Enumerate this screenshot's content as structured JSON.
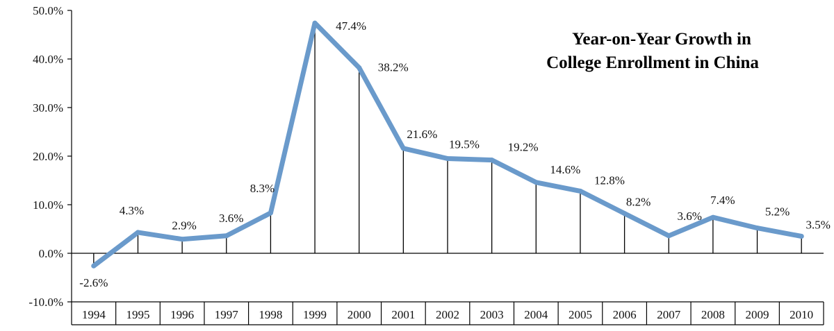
{
  "chart_data": {
    "type": "line",
    "title_lines": [
      "Year-on-Year Growth in",
      "College Enrollment in China"
    ],
    "xlabel": "",
    "ylabel": "",
    "ylim": [
      -10,
      50
    ],
    "ytick_values": [
      -10,
      0,
      10,
      20,
      30,
      40,
      50
    ],
    "ytick_labels": [
      "-10.0%",
      "0.0%",
      "10.0%",
      "20.0%",
      "30.0%",
      "40.0%",
      "50.0%"
    ],
    "grid": false,
    "categories": [
      "1994",
      "1995",
      "1996",
      "1997",
      "1998",
      "1999",
      "2000",
      "2001",
      "2002",
      "2003",
      "2004",
      "2005",
      "2006",
      "2007",
      "2008",
      "2009",
      "2010"
    ],
    "series": [
      {
        "name": "Growth",
        "color": "#6a9acb",
        "values": [
          -2.6,
          4.3,
          2.9,
          3.6,
          8.3,
          47.4,
          38.2,
          21.6,
          19.5,
          19.2,
          14.6,
          12.8,
          8.2,
          3.6,
          7.4,
          5.2,
          3.5
        ],
        "labels": [
          "-2.6%",
          "4.3%",
          "2.9%",
          "3.6%",
          "8.3%",
          "47.4%",
          "38.2%",
          "21.6%",
          "19.5%",
          "19.2%",
          "14.6%",
          "12.8%",
          "8.2%",
          "3.6%",
          "7.4%",
          "5.2%",
          "3.5%"
        ]
      }
    ],
    "drop_lines": true,
    "x_axis_table": true
  }
}
